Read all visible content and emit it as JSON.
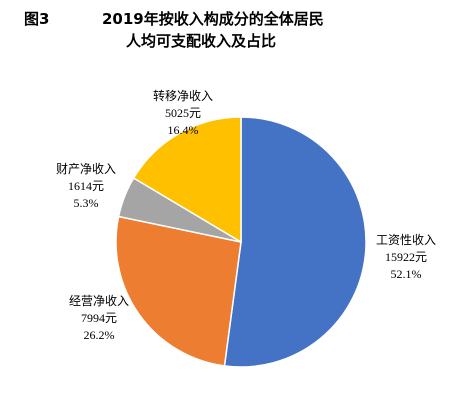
{
  "chart_data": {
    "type": "pie",
    "figure_label": "图3",
    "title": "2019年按收入构成分的全体居民",
    "subtitle": "人均可支配收入及占比",
    "categories": [
      "工资性收入",
      "经营净收入",
      "财产净收入",
      "转移净收入"
    ],
    "values": [
      15922,
      7994,
      1614,
      5025
    ],
    "value_labels": [
      "15922元",
      "7994元",
      "1614元",
      "5025元"
    ],
    "percent_labels": [
      "52.1%",
      "26.2%",
      "5.3%",
      "16.4%"
    ],
    "percents": [
      52.1,
      26.2,
      5.3,
      16.4
    ],
    "colors": [
      "#4472C4",
      "#ED7D31",
      "#A5A5A5",
      "#FFC000"
    ],
    "start_angle": "12 o'clock",
    "direction": "clockwise",
    "legend": "none"
  }
}
